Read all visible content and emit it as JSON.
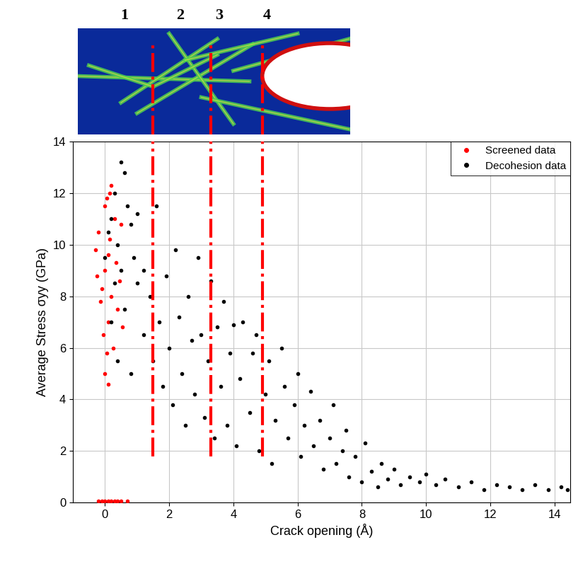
{
  "chart_data": {
    "type": "scatter",
    "xlabel": "Crack opening (Å)",
    "ylabel": "Average Stress σyy (GPa)",
    "xlim": [
      -1,
      14.5
    ],
    "xticks": [
      0,
      2,
      4,
      6,
      8,
      10,
      12,
      14
    ],
    "ylim": [
      0,
      14
    ],
    "yticks": [
      0,
      2,
      4,
      6,
      8,
      10,
      12,
      14
    ],
    "grid": true,
    "legend": "upper right",
    "series": [
      {
        "name": "Screened data",
        "color": "#ff0000",
        "marker": "o",
        "x": [
          -0.3,
          -0.2,
          -0.1,
          0.0,
          0.05,
          0.1,
          0.15,
          0.2,
          -0.05,
          0.0,
          0.1,
          0.2,
          0.3,
          0.35,
          0.4,
          0.5,
          0.55,
          0.0,
          -0.15,
          0.25,
          0.1,
          -0.25,
          0.05,
          0.15,
          0.45,
          -0.2,
          -0.1,
          0.0,
          0.1,
          0.2,
          0.3,
          0.4,
          0.5,
          0.7
        ],
        "values": [
          9.8,
          10.5,
          8.3,
          9.0,
          11.8,
          7.0,
          10.2,
          12.3,
          6.5,
          5.0,
          4.6,
          8.0,
          11.0,
          9.3,
          7.5,
          10.8,
          6.8,
          11.5,
          7.8,
          6.0,
          9.6,
          8.8,
          5.8,
          12.0,
          8.6,
          0.05,
          0.05,
          0.05,
          0.05,
          0.05,
          0.05,
          0.05,
          0.05,
          0.05
        ]
      },
      {
        "name": "Decohesion data",
        "color": "#000000",
        "marker": "o",
        "x": [
          0.0,
          0.1,
          0.2,
          0.3,
          0.4,
          0.5,
          0.6,
          0.7,
          0.3,
          0.5,
          0.6,
          0.2,
          0.8,
          0.9,
          0.4,
          0.8,
          1.0,
          1.0,
          1.2,
          1.2,
          1.4,
          1.5,
          1.6,
          1.7,
          1.8,
          1.9,
          2.0,
          2.1,
          2.2,
          2.3,
          2.4,
          2.5,
          2.6,
          2.7,
          2.8,
          2.9,
          3.0,
          3.1,
          3.2,
          3.3,
          3.4,
          3.5,
          3.6,
          3.7,
          3.8,
          3.9,
          4.0,
          4.1,
          4.2,
          4.3,
          4.5,
          4.6,
          4.7,
          4.8,
          5.0,
          5.1,
          5.2,
          5.3,
          5.5,
          5.6,
          5.7,
          5.9,
          6.0,
          6.1,
          6.2,
          6.4,
          6.5,
          6.7,
          6.8,
          7.0,
          7.1,
          7.2,
          7.4,
          7.5,
          7.6,
          7.8,
          8.0,
          8.1,
          8.3,
          8.5,
          8.6,
          8.8,
          9.0,
          9.2,
          9.5,
          9.8,
          10.0,
          10.3,
          10.6,
          11.0,
          11.4,
          11.8,
          12.2,
          12.6,
          13.0,
          13.4,
          13.8,
          14.2,
          14.4
        ],
        "values": [
          9.5,
          10.5,
          11.0,
          12.0,
          10.0,
          13.2,
          12.8,
          11.5,
          8.5,
          9.0,
          7.5,
          7.0,
          10.8,
          9.5,
          5.5,
          5.0,
          8.5,
          11.2,
          9.0,
          6.5,
          8.0,
          5.5,
          11.5,
          7.0,
          4.5,
          8.8,
          6.0,
          3.8,
          9.8,
          7.2,
          5.0,
          3.0,
          8.0,
          6.3,
          4.2,
          9.5,
          6.5,
          3.3,
          5.5,
          8.6,
          2.5,
          6.8,
          4.5,
          7.8,
          3.0,
          5.8,
          6.9,
          2.2,
          4.8,
          7.0,
          3.5,
          5.8,
          6.5,
          2.0,
          4.2,
          5.5,
          1.5,
          3.2,
          6.0,
          4.5,
          2.5,
          3.8,
          5.0,
          1.8,
          3.0,
          4.3,
          2.2,
          3.2,
          1.3,
          2.5,
          3.8,
          1.5,
          2.0,
          2.8,
          1.0,
          1.8,
          0.8,
          2.3,
          1.2,
          0.6,
          1.5,
          0.9,
          1.3,
          0.7,
          1.0,
          0.8,
          1.1,
          0.7,
          0.9,
          0.6,
          0.8,
          0.5,
          0.7,
          0.6,
          0.5,
          0.7,
          0.5,
          0.6,
          0.5
        ]
      }
    ],
    "vlines": [
      {
        "x": 1.5,
        "ymin": 1.8,
        "color": "#ff0000",
        "line_style": "dashdot"
      },
      {
        "x": 3.3,
        "ymin": 1.8,
        "color": "#ff0000",
        "line_style": "dashdot"
      },
      {
        "x": 4.9,
        "ymin": 1.8,
        "color": "#ff0000",
        "line_style": "dashdot"
      }
    ],
    "annotations": [
      {
        "text": "1",
        "x": 0.6
      },
      {
        "text": "2",
        "x": 2.35
      },
      {
        "text": "3",
        "x": 3.55
      },
      {
        "text": "4",
        "x": 5.05
      }
    ]
  }
}
